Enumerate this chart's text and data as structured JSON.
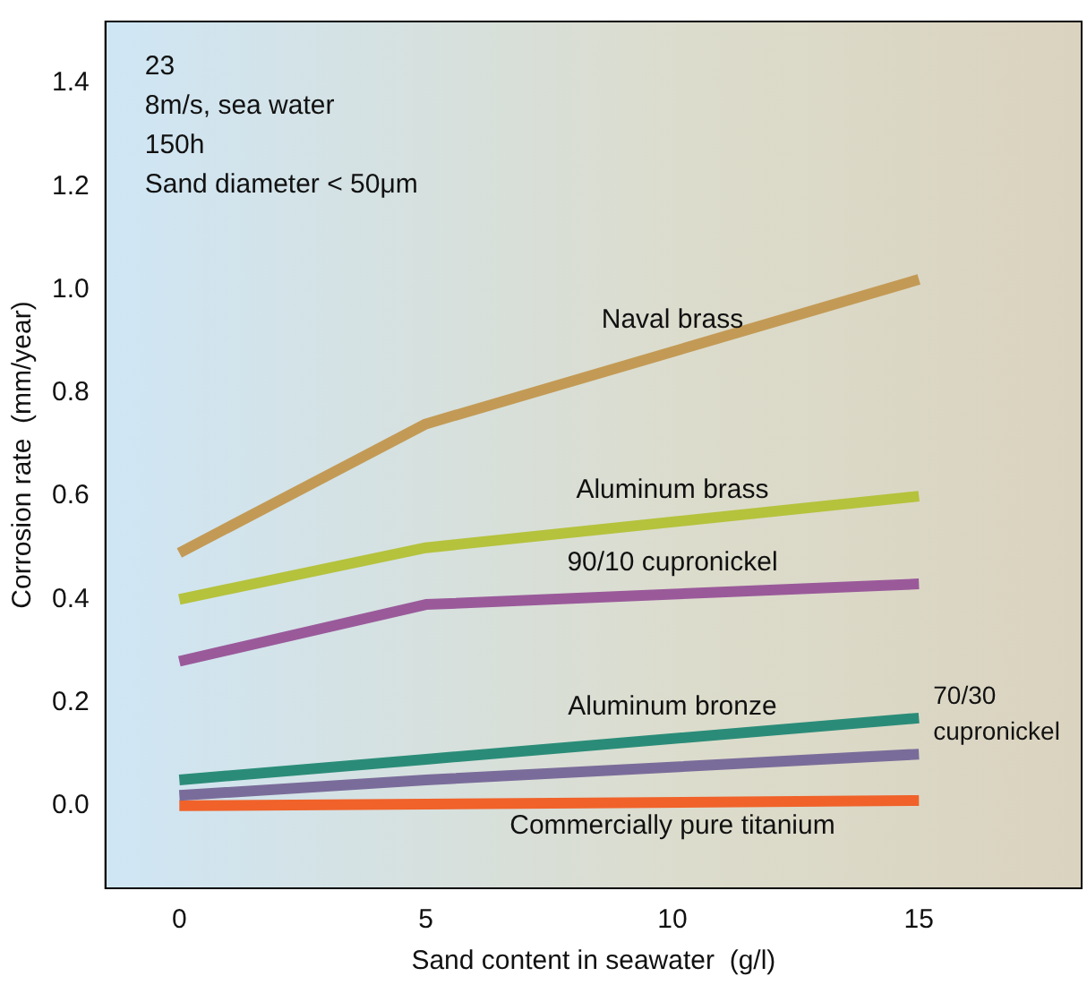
{
  "chart_data": {
    "type": "line",
    "xlabel": "Sand content in seawater  (g/l)",
    "ylabel": "Corrosion rate  (mm/year)",
    "x": [
      0,
      5,
      15
    ],
    "series": [
      {
        "name": "Naval brass",
        "color": "#c39a55",
        "values": [
          0.49,
          0.74,
          1.02
        ]
      },
      {
        "name": "Aluminum brass",
        "color": "#b5c23c",
        "values": [
          0.4,
          0.5,
          0.6
        ]
      },
      {
        "name": "90/10 cupronickel",
        "color": "#9a5a9a",
        "values": [
          0.28,
          0.39,
          0.43
        ]
      },
      {
        "name": "Aluminum bronze",
        "color": "#2a8c78",
        "values": [
          0.05,
          0.09,
          0.17
        ]
      },
      {
        "name": "70/30 cupronickel",
        "color": "#7a6c9a",
        "values": [
          0.02,
          0.05,
          0.1
        ]
      },
      {
        "name": "Commercially pure titanium",
        "color": "#f0622a",
        "values": [
          0,
          0.003,
          0.01
        ]
      }
    ],
    "xlim": [
      -1.5,
      18.3
    ],
    "xticks": [
      0,
      5,
      10,
      15
    ],
    "ylim": [
      -0.16,
      1.52
    ],
    "yticks": [
      {
        "value": 0,
        "label": "0.0"
      },
      {
        "value": 0.2,
        "label": "0.2"
      },
      {
        "value": 0.4,
        "label": "0.4"
      },
      {
        "value": 0.6,
        "label": "0.6"
      },
      {
        "value": 0.8,
        "label": "0.8"
      },
      {
        "value": 1,
        "label": "1.0"
      },
      {
        "value": 1.2,
        "label": "1.2"
      },
      {
        "value": 1.4,
        "label": "1.4"
      }
    ],
    "annotations": [
      "23",
      "8m/s, sea water",
      "150h",
      "Sand diameter < 50μm"
    ],
    "grid": false,
    "legend": false,
    "marker": "none",
    "line_style": "solid"
  }
}
